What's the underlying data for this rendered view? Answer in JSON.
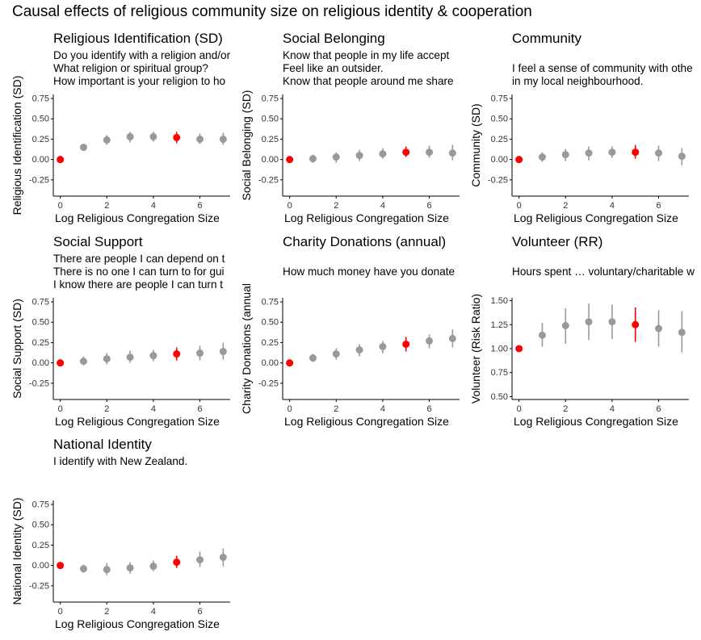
{
  "figure_title": "Causal effects of religious community size on religious identity & cooperation",
  "colors": {
    "point": "#999999",
    "highlight": "#ff0000",
    "axis": "#000000"
  },
  "chart_data": [
    {
      "type": "scatter",
      "title": "Religious Identification (SD)",
      "description": [
        "Do you identify with a religion and/or",
        "What religion or spiritual group?",
        "How important is your religion to ho"
      ],
      "xlabel": "Log Religious Congregation Size",
      "ylabel": "Religious Identification (SD)",
      "xlim": [
        -0.3,
        7.3
      ],
      "ylim": [
        -0.45,
        0.8
      ],
      "xticks": [
        0,
        2,
        4,
        6
      ],
      "yticks": [
        -0.25,
        0.0,
        0.25,
        0.5,
        0.75
      ],
      "ytick_labels": [
        "-0.25",
        "0.00",
        "0.25",
        "0.50",
        "0.75"
      ],
      "highlight_x": [
        0,
        5
      ],
      "points": [
        {
          "x": 0,
          "y": 0.0,
          "lo": 0.0,
          "hi": 0.0
        },
        {
          "x": 1,
          "y": 0.15,
          "lo": 0.11,
          "hi": 0.19
        },
        {
          "x": 2,
          "y": 0.24,
          "lo": 0.18,
          "hi": 0.3
        },
        {
          "x": 3,
          "y": 0.28,
          "lo": 0.21,
          "hi": 0.34
        },
        {
          "x": 4,
          "y": 0.28,
          "lo": 0.22,
          "hi": 0.34
        },
        {
          "x": 5,
          "y": 0.27,
          "lo": 0.2,
          "hi": 0.34
        },
        {
          "x": 6,
          "y": 0.25,
          "lo": 0.19,
          "hi": 0.32
        },
        {
          "x": 7,
          "y": 0.25,
          "lo": 0.18,
          "hi": 0.33
        }
      ]
    },
    {
      "type": "scatter",
      "title": "Social Belonging",
      "description": [
        "Know that people in my life accept",
        "Feel like an outsider.",
        "Know that people around me share"
      ],
      "xlabel": "Log Religious Congregation Size",
      "ylabel": "Social Belonging (SD)",
      "xlim": [
        -0.3,
        7.3
      ],
      "ylim": [
        -0.45,
        0.8
      ],
      "xticks": [
        0,
        2,
        4,
        6
      ],
      "yticks": [
        -0.25,
        0.0,
        0.25,
        0.5,
        0.75
      ],
      "ytick_labels": [
        "-0.25",
        "0.00",
        "0.25",
        "0.50",
        "0.75"
      ],
      "highlight_x": [
        0,
        5
      ],
      "points": [
        {
          "x": 0,
          "y": 0.0,
          "lo": 0.0,
          "hi": 0.0
        },
        {
          "x": 1,
          "y": 0.01,
          "lo": -0.04,
          "hi": 0.06
        },
        {
          "x": 2,
          "y": 0.03,
          "lo": -0.04,
          "hi": 0.09
        },
        {
          "x": 3,
          "y": 0.05,
          "lo": -0.02,
          "hi": 0.12
        },
        {
          "x": 4,
          "y": 0.07,
          "lo": 0.01,
          "hi": 0.14
        },
        {
          "x": 5,
          "y": 0.09,
          "lo": 0.03,
          "hi": 0.16
        },
        {
          "x": 6,
          "y": 0.09,
          "lo": 0.02,
          "hi": 0.17
        },
        {
          "x": 7,
          "y": 0.08,
          "lo": -0.01,
          "hi": 0.18
        }
      ]
    },
    {
      "type": "scatter",
      "title": "Community",
      "description": [
        "",
        "I feel a sense of community with othe",
        "in my local neighbourhood."
      ],
      "xlabel": "Log Religious Congregation Size",
      "ylabel": "Community (SD)",
      "xlim": [
        -0.3,
        7.3
      ],
      "ylim": [
        -0.45,
        0.8
      ],
      "xticks": [
        0,
        2,
        4,
        6
      ],
      "yticks": [
        -0.25,
        0.0,
        0.25,
        0.5,
        0.75
      ],
      "ytick_labels": [
        "-0.25",
        "0.00",
        "0.25",
        "0.50",
        "0.75"
      ],
      "highlight_x": [
        0,
        5
      ],
      "points": [
        {
          "x": 0,
          "y": 0.0,
          "lo": 0.0,
          "hi": 0.0
        },
        {
          "x": 1,
          "y": 0.03,
          "lo": -0.03,
          "hi": 0.09
        },
        {
          "x": 2,
          "y": 0.06,
          "lo": -0.02,
          "hi": 0.13
        },
        {
          "x": 3,
          "y": 0.08,
          "lo": -0.01,
          "hi": 0.16
        },
        {
          "x": 4,
          "y": 0.09,
          "lo": 0.02,
          "hi": 0.16
        },
        {
          "x": 5,
          "y": 0.09,
          "lo": 0.01,
          "hi": 0.18
        },
        {
          "x": 6,
          "y": 0.08,
          "lo": -0.02,
          "hi": 0.17
        },
        {
          "x": 7,
          "y": 0.04,
          "lo": -0.07,
          "hi": 0.14
        }
      ]
    },
    {
      "type": "scatter",
      "title": "Social Support",
      "description": [
        "There are people I can depend on t",
        "There is no one I can turn to for gui",
        "I know there are people I can turn t"
      ],
      "xlabel": "Log Religious Congregation Size",
      "ylabel": "Social Support (SD)",
      "xlim": [
        -0.3,
        7.3
      ],
      "ylim": [
        -0.45,
        0.8
      ],
      "xticks": [
        0,
        2,
        4,
        6
      ],
      "yticks": [
        -0.25,
        0.0,
        0.25,
        0.5,
        0.75
      ],
      "ytick_labels": [
        "-0.25",
        "0.00",
        "0.25",
        "0.50",
        "0.75"
      ],
      "highlight_x": [
        0,
        5
      ],
      "points": [
        {
          "x": 0,
          "y": 0.0,
          "lo": 0.0,
          "hi": 0.0
        },
        {
          "x": 1,
          "y": 0.02,
          "lo": -0.03,
          "hi": 0.08
        },
        {
          "x": 2,
          "y": 0.05,
          "lo": -0.02,
          "hi": 0.12
        },
        {
          "x": 3,
          "y": 0.07,
          "lo": 0.0,
          "hi": 0.15
        },
        {
          "x": 4,
          "y": 0.09,
          "lo": 0.02,
          "hi": 0.16
        },
        {
          "x": 5,
          "y": 0.11,
          "lo": 0.03,
          "hi": 0.19
        },
        {
          "x": 6,
          "y": 0.12,
          "lo": 0.03,
          "hi": 0.21
        },
        {
          "x": 7,
          "y": 0.14,
          "lo": 0.04,
          "hi": 0.25
        }
      ]
    },
    {
      "type": "scatter",
      "title": "Charity Donations (annual)",
      "description": [
        "",
        "How much money have you donate",
        ""
      ],
      "xlabel": "Log Religious Congregation Size",
      "ylabel": "Charity Donations (annual",
      "xlim": [
        -0.3,
        7.3
      ],
      "ylim": [
        -0.45,
        0.8
      ],
      "xticks": [
        0,
        2,
        4,
        6
      ],
      "yticks": [
        -0.25,
        0.0,
        0.25,
        0.5,
        0.75
      ],
      "ytick_labels": [
        "-0.25",
        "0.00",
        "0.25",
        "0.50",
        "0.75"
      ],
      "highlight_x": [
        0,
        5
      ],
      "points": [
        {
          "x": 0,
          "y": 0.0,
          "lo": 0.0,
          "hi": 0.0
        },
        {
          "x": 1,
          "y": 0.06,
          "lo": 0.01,
          "hi": 0.11
        },
        {
          "x": 2,
          "y": 0.11,
          "lo": 0.04,
          "hi": 0.18
        },
        {
          "x": 3,
          "y": 0.16,
          "lo": 0.08,
          "hi": 0.23
        },
        {
          "x": 4,
          "y": 0.2,
          "lo": 0.12,
          "hi": 0.27
        },
        {
          "x": 5,
          "y": 0.23,
          "lo": 0.14,
          "hi": 0.32
        },
        {
          "x": 6,
          "y": 0.27,
          "lo": 0.18,
          "hi": 0.35
        },
        {
          "x": 7,
          "y": 0.3,
          "lo": 0.19,
          "hi": 0.41
        }
      ]
    },
    {
      "type": "scatter",
      "title": "Volunteer (RR)",
      "description": [
        "",
        "Hours spent … voluntary/charitable w",
        ""
      ],
      "xlabel": "Log Religious Congregation Size",
      "ylabel": "Volunteer (Risk Ratio)",
      "xlim": [
        -0.3,
        7.3
      ],
      "ylim": [
        0.47,
        1.53
      ],
      "xticks": [
        0,
        2,
        4,
        6
      ],
      "yticks": [
        0.5,
        0.75,
        1.0,
        1.25,
        1.5
      ],
      "ytick_labels": [
        "0.50",
        "0.75",
        "1.00",
        "1.25",
        "1.50"
      ],
      "highlight_x": [
        0,
        5
      ],
      "points": [
        {
          "x": 0,
          "y": 1.0,
          "lo": 1.0,
          "hi": 1.0
        },
        {
          "x": 1,
          "y": 1.14,
          "lo": 1.02,
          "hi": 1.27
        },
        {
          "x": 2,
          "y": 1.24,
          "lo": 1.05,
          "hi": 1.42
        },
        {
          "x": 3,
          "y": 1.28,
          "lo": 1.09,
          "hi": 1.47
        },
        {
          "x": 4,
          "y": 1.28,
          "lo": 1.1,
          "hi": 1.46
        },
        {
          "x": 5,
          "y": 1.25,
          "lo": 1.07,
          "hi": 1.43
        },
        {
          "x": 6,
          "y": 1.21,
          "lo": 1.02,
          "hi": 1.4
        },
        {
          "x": 7,
          "y": 1.17,
          "lo": 0.96,
          "hi": 1.39
        }
      ]
    },
    {
      "type": "scatter",
      "title": "National Identity",
      "description": [
        "I identify with New Zealand.",
        "",
        ""
      ],
      "xlabel": "Log Religious Congregation Size",
      "ylabel": "National Identity (SD)",
      "xlim": [
        -0.3,
        7.3
      ],
      "ylim": [
        -0.45,
        0.8
      ],
      "xticks": [
        0,
        2,
        4,
        6
      ],
      "yticks": [
        -0.25,
        0.0,
        0.25,
        0.5,
        0.75
      ],
      "ytick_labels": [
        "-0.25",
        "0.00",
        "0.25",
        "0.50",
        "0.75"
      ],
      "highlight_x": [
        0,
        5
      ],
      "points": [
        {
          "x": 0,
          "y": 0.0,
          "lo": 0.0,
          "hi": 0.0
        },
        {
          "x": 1,
          "y": -0.04,
          "lo": -0.09,
          "hi": 0.01
        },
        {
          "x": 2,
          "y": -0.05,
          "lo": -0.12,
          "hi": 0.03
        },
        {
          "x": 3,
          "y": -0.03,
          "lo": -0.1,
          "hi": 0.04
        },
        {
          "x": 4,
          "y": -0.01,
          "lo": -0.07,
          "hi": 0.06
        },
        {
          "x": 5,
          "y": 0.04,
          "lo": -0.03,
          "hi": 0.12
        },
        {
          "x": 6,
          "y": 0.07,
          "lo": -0.02,
          "hi": 0.17
        },
        {
          "x": 7,
          "y": 0.1,
          "lo": -0.01,
          "hi": 0.21
        }
      ]
    }
  ]
}
